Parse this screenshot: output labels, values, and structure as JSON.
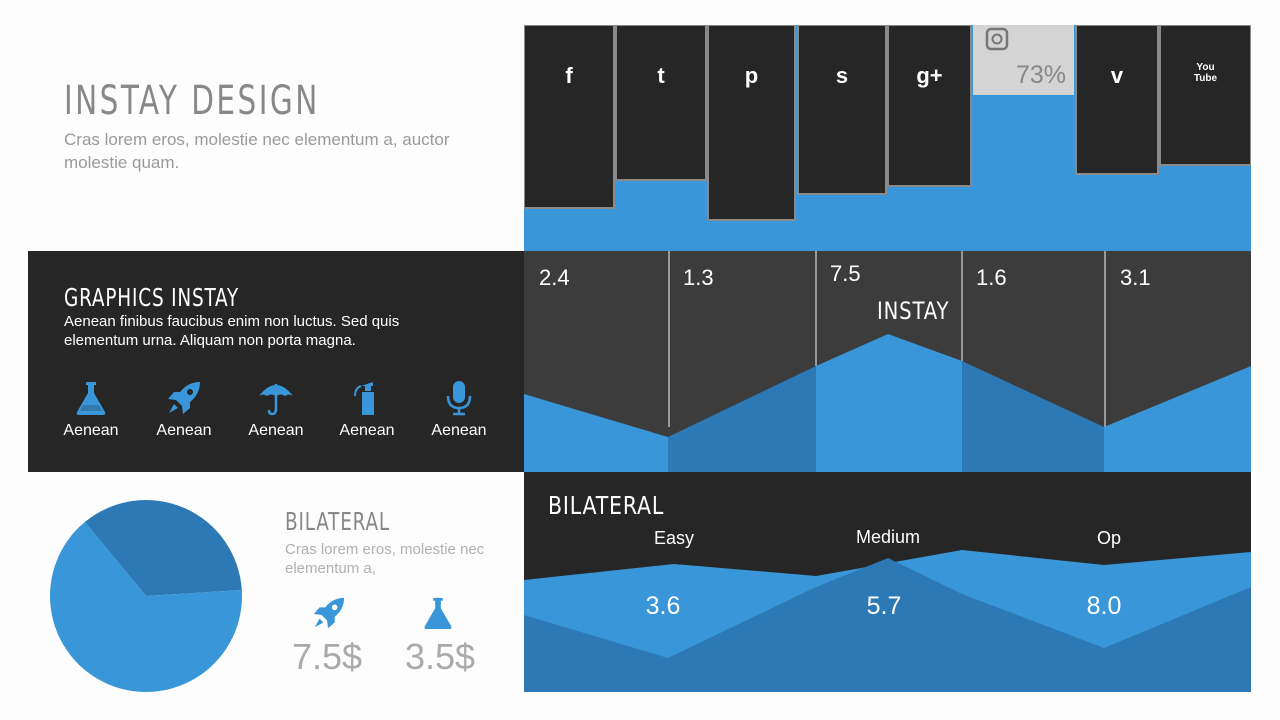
{
  "header": {
    "title": "INSTAY DESIGN",
    "subtitle": "Cras lorem eros, molestie nec elementum a, auctor molestie quam."
  },
  "social": {
    "items": [
      {
        "icon": "facebook-icon",
        "glyph": "f",
        "level": 0.81
      },
      {
        "icon": "twitter-icon",
        "glyph": "t",
        "level": 0.71
      },
      {
        "icon": "pinterest-icon",
        "glyph": "p",
        "level": 0.86
      },
      {
        "icon": "skype-icon",
        "glyph": "s",
        "level": 0.75
      },
      {
        "icon": "googleplus-icon",
        "glyph": "g+",
        "level": 0.71
      },
      {
        "icon": "instagram-icon",
        "glyph": "i",
        "level": 0.73,
        "highlight": true,
        "percent": "73%"
      },
      {
        "icon": "vimeo-icon",
        "glyph": "v",
        "level": 0.67
      },
      {
        "icon": "youtube-icon",
        "glyph": "You\nTube",
        "level": 0.63
      }
    ]
  },
  "graphics": {
    "title": "GRAPHICS INSTAY",
    "text": "Aenean finibus faucibus enim non luctus. Sed quis elementum urna. Aliquam non porta magna.",
    "items": [
      {
        "icon": "flask-icon",
        "label": "Aenean"
      },
      {
        "icon": "rocket-icon",
        "label": "Aenean"
      },
      {
        "icon": "umbrella-icon",
        "label": "Aenean"
      },
      {
        "icon": "extinguisher-icon",
        "label": "Aenean"
      },
      {
        "icon": "microphone-icon",
        "label": "Aenean"
      }
    ]
  },
  "instay_chart": {
    "label": "INSTAY",
    "values": [
      "2.4",
      "1.3",
      "7.5",
      "1.6",
      "3.1"
    ]
  },
  "bilateral_chart": {
    "title": "BILATERAL",
    "categories": [
      "Easy",
      "Medium",
      "Op"
    ],
    "values": [
      "3.6",
      "5.7",
      "8.0"
    ]
  },
  "bilateral_info": {
    "title": "BILATERAL",
    "text": "Cras lorem eros, molestie nec elementum a,",
    "prices": [
      {
        "icon": "rocket-icon",
        "value": "7.5$"
      },
      {
        "icon": "flask-icon",
        "value": "3.5$"
      }
    ]
  },
  "pie": {
    "slices": [
      0.35,
      0.65
    ]
  },
  "colors": {
    "dark": "#262626",
    "panel": "#3c3c3c",
    "blue": "#3896d9",
    "blue_dark": "#2d79b5",
    "grey_text": "#888888"
  }
}
